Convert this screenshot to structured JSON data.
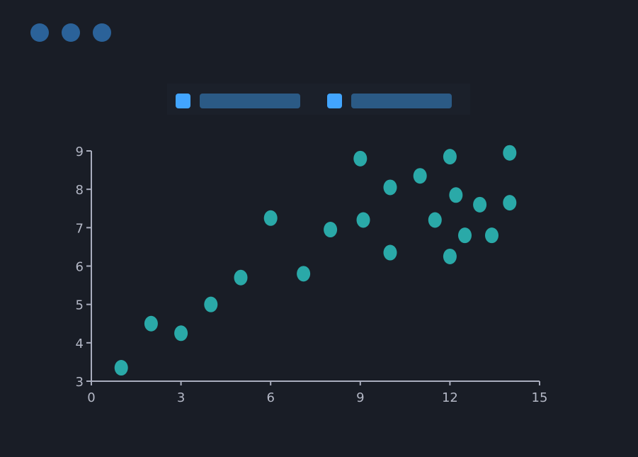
{
  "window_controls": [
    "dot",
    "dot",
    "dot"
  ],
  "colors": {
    "background": "#191d26",
    "point": "#2aa9a8",
    "axis": "#a9adbd",
    "legend_swatch": "#42a5ff",
    "legend_label_placeholder": "#2b5a85",
    "window_dot": "#2b6299"
  },
  "legend": {
    "placement": "top-center",
    "items": [
      {
        "label": ""
      },
      {
        "label": ""
      }
    ]
  },
  "chart_data": {
    "type": "scatter",
    "title": "",
    "xlabel": "",
    "ylabel": "",
    "xlim": [
      0,
      15
    ],
    "ylim": [
      3,
      9
    ],
    "xticks": [
      0,
      3,
      6,
      9,
      12,
      15
    ],
    "yticks": [
      3,
      4,
      5,
      6,
      7,
      8,
      9
    ],
    "grid": false,
    "series": [
      {
        "x": [
          1,
          2,
          3,
          4,
          5,
          6,
          7.1,
          8,
          9,
          9.1,
          10,
          10,
          11,
          11.5,
          12,
          12,
          12.2,
          12.5,
          13,
          13.4,
          14,
          14
        ],
        "y": [
          3.35,
          4.5,
          4.25,
          5,
          5.7,
          7.25,
          5.8,
          6.95,
          8.8,
          7.2,
          8.05,
          6.35,
          8.35,
          7.2,
          8.85,
          6.25,
          7.85,
          6.8,
          7.6,
          6.8,
          8.95,
          7.65
        ]
      }
    ]
  }
}
